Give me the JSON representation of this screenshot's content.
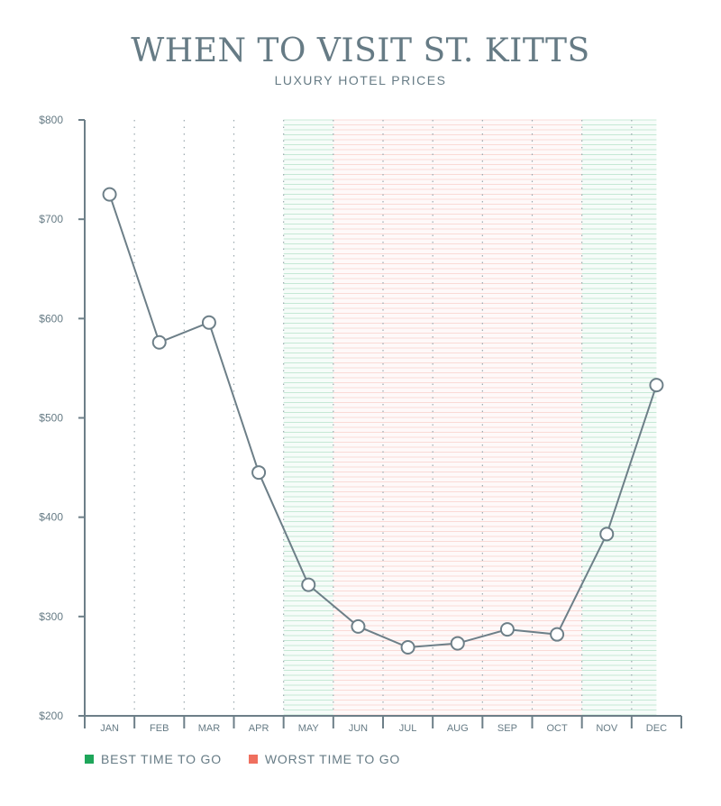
{
  "chart_data": {
    "type": "line",
    "title": "WHEN TO VISIT ST. KITTS",
    "subtitle": "LUXURY HOTEL PRICES",
    "categories": [
      "JAN",
      "FEB",
      "MAR",
      "APR",
      "MAY",
      "JUN",
      "JUL",
      "AUG",
      "SEP",
      "OCT",
      "NOV",
      "DEC"
    ],
    "values": [
      725,
      576,
      596,
      445,
      332,
      290,
      269,
      273,
      287,
      282,
      383,
      533
    ],
    "ylim": [
      200,
      800
    ],
    "yticks": [
      200,
      300,
      400,
      500,
      600,
      700,
      800
    ],
    "ytick_labels": [
      "$200",
      "$300",
      "$400",
      "$500",
      "$600",
      "$700",
      "$800"
    ],
    "bands": [
      {
        "type": "best",
        "from": "MAY",
        "to": "MAY"
      },
      {
        "type": "worst",
        "from": "JUN",
        "to": "OCT"
      },
      {
        "type": "best",
        "from": "NOV",
        "to": "DEC"
      }
    ],
    "legend": [
      {
        "label": "BEST TIME TO GO",
        "color": "#1ea65a"
      },
      {
        "label": "WORST TIME TO GO",
        "color": "#ef6f5e"
      }
    ],
    "colors": {
      "line": "#6d7f88",
      "axis": "#6d7f88",
      "text": "#667b85",
      "best_band": "#1ea65a",
      "worst_band": "#ef6f5e"
    }
  }
}
